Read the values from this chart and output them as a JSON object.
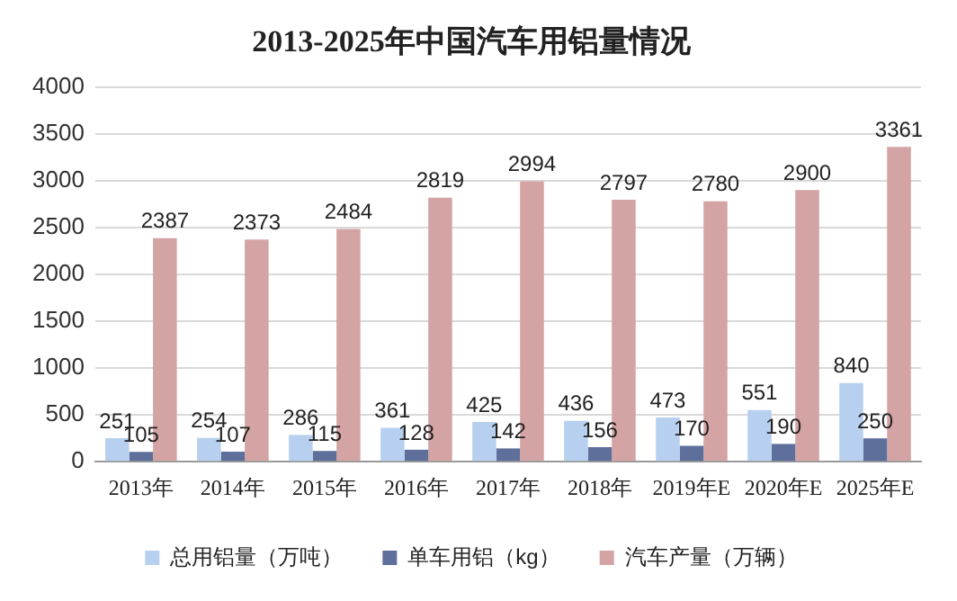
{
  "chart_data": {
    "type": "bar",
    "title": "2013-2025年中国汽车用铝量情况",
    "categories": [
      "2013年",
      "2014年",
      "2015年",
      "2016年",
      "2017年",
      "2018年",
      "2019年E",
      "2020年E",
      "2025年E"
    ],
    "series": [
      {
        "name": "总用铝量（万吨）",
        "color": "#b7d0ef",
        "values": [
          251,
          254,
          286,
          361,
          425,
          436,
          473,
          551,
          840
        ]
      },
      {
        "name": "单车用铝（kg）",
        "color": "#5e6f9b",
        "values": [
          105,
          107,
          115,
          128,
          142,
          156,
          170,
          190,
          250
        ]
      },
      {
        "name": "汽车产量（万辆）",
        "color": "#d4a3a3",
        "values": [
          2387,
          2373,
          2484,
          2819,
          2994,
          2797,
          2780,
          2900,
          3361
        ]
      }
    ],
    "ylim": [
      0,
      4000
    ],
    "yticks": [
      0,
      500,
      1000,
      1500,
      2000,
      2500,
      3000,
      3500,
      4000
    ],
    "grid": "y",
    "legend": "bottom",
    "data_labels": true
  }
}
